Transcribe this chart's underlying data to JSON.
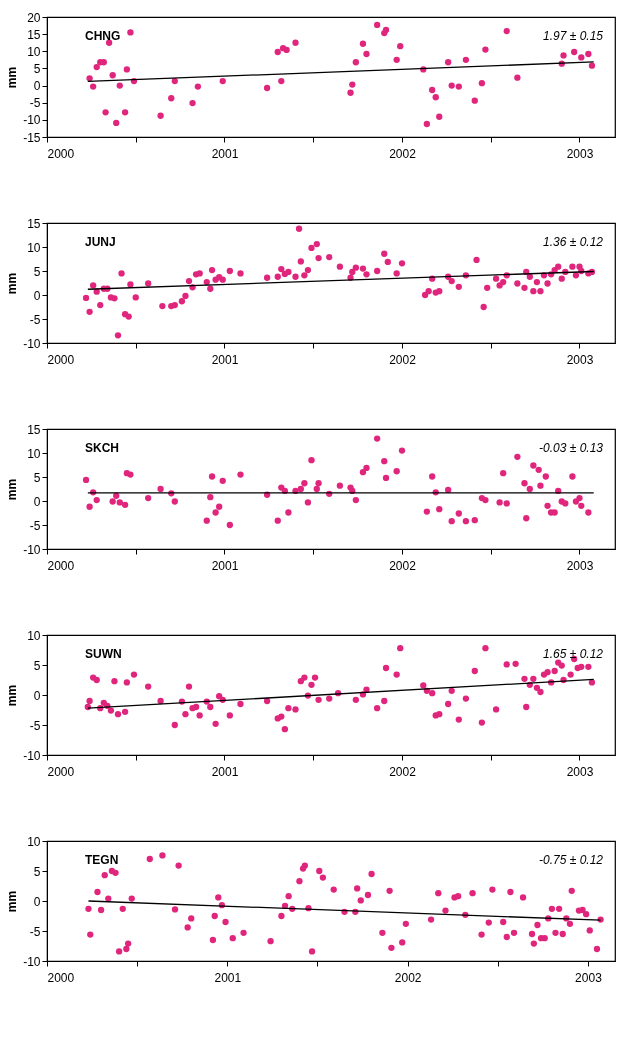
{
  "chart_data": [
    {
      "type": "scatter",
      "title": "CHNG",
      "ylabel": "mm",
      "annotations": [
        "1.97 ± 0.15"
      ],
      "grid": false,
      "xlim": [
        2000,
        2003.2
      ],
      "ylim": [
        -15,
        20
      ],
      "xticks": [
        2000,
        {
          "value": 2000.5,
          "label": null
        },
        2001,
        {
          "value": 2001.5,
          "label": null
        },
        2002,
        {
          "value": 2002.5,
          "label": null
        },
        2003
      ],
      "yticks": [
        -15,
        -10,
        -5,
        0,
        5,
        10,
        15,
        20
      ],
      "series": [
        {
          "marker": "circle",
          "color": "#e0267c",
          "x": [
            2000.24,
            2000.26,
            2000.28,
            2000.3,
            2000.32,
            2000.33,
            2000.35,
            2000.37,
            2000.39,
            2000.41,
            2000.44,
            2000.45,
            2000.47,
            2000.49,
            2000.64,
            2000.7,
            2000.72,
            2000.82,
            2000.85,
            2000.99,
            2001.24,
            2001.3,
            2001.32,
            2001.33,
            2001.35,
            2001.4,
            2001.71,
            2001.72,
            2001.74,
            2001.78,
            2001.8,
            2001.86,
            2001.9,
            2001.91,
            2001.97,
            2001.99,
            2002.12,
            2002.14,
            2002.17,
            2002.19,
            2002.21,
            2002.26,
            2002.28,
            2002.32,
            2002.36,
            2002.41,
            2002.45,
            2002.47,
            2002.59,
            2002.65,
            2002.9,
            2002.91,
            2002.97,
            2003.01,
            2003.05,
            2003.07
          ],
          "values": [
            2.1,
            -0.3,
            5.4,
            6.8,
            6.8,
            -7.8,
            12.5,
            3.0,
            -10.9,
            0,
            -7.8,
            4.7,
            15.5,
            1.3,
            -8.8,
            -3.7,
            1.3,
            -5.1,
            -0.3,
            1.3,
            -0.7,
            9.8,
            1.3,
            10.9,
            10.4,
            12.5,
            -2.1,
            0.3,
            6.8,
            12.2,
            9.2,
            17.7,
            15.3,
            16.2,
            7.5,
            11.5,
            4.7,
            -11.2,
            -1.3,
            -3.4,
            -9.1,
            6.8,
            0,
            -0.3,
            7.5,
            -4.4,
            0.7,
            10.5,
            15.9,
            2.3,
            6.4,
            8.8,
            9.8,
            8.2,
            9.2,
            5.8
          ]
        },
        {
          "type": "line",
          "color": "#000000",
          "x": [
            2000.23,
            2003.08
          ],
          "values": [
            1.2,
            6.9
          ]
        }
      ]
    },
    {
      "type": "scatter",
      "title": "JUNJ",
      "ylabel": "mm",
      "annotations": [
        "1.36 ± 0.12"
      ],
      "grid": false,
      "xlim": [
        2000,
        2003.2
      ],
      "ylim": [
        -10,
        15
      ],
      "xticks": [
        2000,
        {
          "value": 2000.5,
          "label": null
        },
        2001,
        {
          "value": 2001.5,
          "label": null
        },
        2002,
        {
          "value": 2002.5,
          "label": null
        },
        2003
      ],
      "yticks": [
        -10,
        -5,
        0,
        5,
        10,
        15
      ],
      "series": [
        {
          "marker": "circle",
          "color": "#e0267c",
          "x": [
            2000.22,
            2000.24,
            2000.26,
            2000.28,
            2000.3,
            2000.32,
            2000.34,
            2000.36,
            2000.38,
            2000.4,
            2000.42,
            2000.44,
            2000.46,
            2000.47,
            2000.5,
            2000.57,
            2000.65,
            2000.7,
            2000.72,
            2000.76,
            2000.78,
            2000.8,
            2000.82,
            2000.84,
            2000.86,
            2000.9,
            2000.92,
            2000.93,
            2000.95,
            2000.97,
            2000.99,
            2001.03,
            2001.09,
            2001.24,
            2001.3,
            2001.32,
            2001.34,
            2001.36,
            2001.4,
            2001.42,
            2001.43,
            2001.45,
            2001.47,
            2001.49,
            2001.52,
            2001.53,
            2001.59,
            2001.65,
            2001.71,
            2001.72,
            2001.74,
            2001.78,
            2001.8,
            2001.86,
            2001.9,
            2001.92,
            2001.97,
            2002.0,
            2002.13,
            2002.15,
            2002.17,
            2002.19,
            2002.21,
            2002.26,
            2002.28,
            2002.32,
            2002.36,
            2002.42,
            2002.46,
            2002.48,
            2002.53,
            2002.55,
            2002.57,
            2002.59,
            2002.65,
            2002.69,
            2002.7,
            2002.72,
            2002.74,
            2002.76,
            2002.78,
            2002.8,
            2002.82,
            2002.84,
            2002.86,
            2002.88,
            2002.9,
            2002.92,
            2002.96,
            2002.98,
            2003.0,
            2003.01,
            2003.05,
            2003.07
          ],
          "values": [
            -0.6,
            -3.5,
            2.0,
            0.7,
            -2.1,
            1.3,
            1.3,
            -0.5,
            -0.7,
            -8.4,
            4.5,
            -4.0,
            -4.5,
            2.2,
            -0.5,
            2.4,
            -2.3,
            -2.3,
            -2.1,
            -1.3,
            -0.2,
            2.9,
            1.6,
            4.3,
            4.5,
            2.7,
            1.3,
            5.2,
            3.2,
            3.7,
            3.2,
            5.0,
            4.5,
            3.6,
            3.8,
            5.4,
            4.4,
            4.8,
            3.8,
            13.8,
            7.0,
            4.1,
            5.2,
            9.8,
            10.6,
            7.7,
            7.9,
            5.9,
            3.6,
            4.8,
            5.7,
            5.5,
            4.3,
            5.0,
            8.6,
            6.9,
            4.5,
            6.6,
            0.0,
            0.8,
            3.4,
            0.5,
            0.8,
            3.8,
            2.9,
            1.7,
            4.1,
            7.3,
            -2.5,
            1.5,
            3.4,
            2.0,
            2.7,
            4.1,
            2.4,
            1.5,
            4.8,
            3.8,
            0.8,
            2.7,
            0.8,
            4.1,
            2.4,
            4.3,
            5.2,
            5.9,
            3.4,
            4.8,
            5.9,
            4.1,
            5.9,
            5.0,
            4.5,
            4.8
          ]
        },
        {
          "type": "line",
          "color": "#000000",
          "x": [
            2000.23,
            2003.08
          ],
          "values": [
            1.2,
            4.9
          ]
        }
      ]
    },
    {
      "type": "scatter",
      "title": "SKCH",
      "ylabel": "mm",
      "annotations": [
        "-0.03 ± 0.13"
      ],
      "grid": false,
      "xlim": [
        2000,
        2003.2
      ],
      "ylim": [
        -10,
        15
      ],
      "xticks": [
        2000,
        {
          "value": 2000.5,
          "label": null
        },
        2001,
        {
          "value": 2001.5,
          "label": null
        },
        2002,
        {
          "value": 2002.5,
          "label": null
        },
        2003
      ],
      "yticks": [
        -10,
        -5,
        0,
        5,
        10,
        15
      ],
      "series": [
        {
          "marker": "circle",
          "color": "#e0267c",
          "x": [
            2000.22,
            2000.24,
            2000.26,
            2000.28,
            2000.37,
            2000.39,
            2000.41,
            2000.44,
            2000.45,
            2000.47,
            2000.57,
            2000.64,
            2000.7,
            2000.72,
            2000.9,
            2000.92,
            2000.93,
            2000.95,
            2000.97,
            2000.99,
            2001.03,
            2001.09,
            2001.24,
            2001.3,
            2001.32,
            2001.34,
            2001.36,
            2001.4,
            2001.43,
            2001.45,
            2001.47,
            2001.49,
            2001.52,
            2001.53,
            2001.59,
            2001.65,
            2001.71,
            2001.72,
            2001.74,
            2001.78,
            2001.8,
            2001.86,
            2001.9,
            2001.91,
            2001.97,
            2002.0,
            2002.14,
            2002.17,
            2002.19,
            2002.21,
            2002.26,
            2002.28,
            2002.32,
            2002.36,
            2002.41,
            2002.45,
            2002.47,
            2002.55,
            2002.57,
            2002.59,
            2002.65,
            2002.69,
            2002.7,
            2002.72,
            2002.74,
            2002.77,
            2002.78,
            2002.81,
            2002.82,
            2002.84,
            2002.86,
            2002.88,
            2002.9,
            2002.92,
            2002.96,
            2002.98,
            2003.0,
            2003.01,
            2003.05
          ],
          "values": [
            4.4,
            -1.2,
            1.8,
            0.2,
            -0.1,
            1.1,
            -0.3,
            -0.8,
            5.8,
            5.5,
            0.6,
            2.5,
            1.6,
            -0.1,
            -4.1,
            0.8,
            5.1,
            -2.4,
            -1.2,
            4.2,
            -5.0,
            5.5,
            1.3,
            -4.1,
            2.8,
            2.1,
            -2.4,
            2.1,
            2.5,
            3.7,
            -0.3,
            8.5,
            2.5,
            3.7,
            1.5,
            3.2,
            2.8,
            2.1,
            0.2,
            6.0,
            6.9,
            13.0,
            8.3,
            4.8,
            6.2,
            10.5,
            -2.2,
            5.1,
            1.8,
            -1.7,
            2.3,
            -4.2,
            -2.6,
            -4.2,
            -4.0,
            0.6,
            0.2,
            -0.3,
            5.8,
            -0.5,
            9.2,
            3.7,
            -3.6,
            2.5,
            7.4,
            6.5,
            3.2,
            5.1,
            -1.0,
            -2.4,
            -2.4,
            2.1,
            -0.1,
            -0.5,
            5.1,
            -0.1,
            0.6,
            -1.0,
            -2.4
          ]
        },
        {
          "type": "line",
          "color": "#000000",
          "x": [
            2000.23,
            2003.08
          ],
          "values": [
            1.7,
            1.7
          ]
        }
      ]
    },
    {
      "type": "scatter",
      "title": "SUWN",
      "ylabel": "mm",
      "annotations": [
        "1.65 ± 0.12"
      ],
      "grid": false,
      "xlim": [
        2000,
        2003.2
      ],
      "ylim": [
        -10,
        10
      ],
      "xticks": [
        2000,
        {
          "value": 2000.5,
          "label": null
        },
        2001,
        {
          "value": 2001.5,
          "label": null
        },
        2002,
        {
          "value": 2002.5,
          "label": null
        },
        2003
      ],
      "yticks": [
        -10,
        -5,
        0,
        5,
        10
      ],
      "series": [
        {
          "marker": "circle",
          "color": "#e0267c",
          "x": [
            2000.23,
            2000.24,
            2000.26,
            2000.28,
            2000.3,
            2000.32,
            2000.34,
            2000.36,
            2000.38,
            2000.4,
            2000.44,
            2000.45,
            2000.49,
            2000.57,
            2000.64,
            2000.72,
            2000.76,
            2000.78,
            2000.8,
            2000.82,
            2000.84,
            2000.86,
            2000.9,
            2000.92,
            2000.95,
            2000.97,
            2000.99,
            2001.03,
            2001.09,
            2001.24,
            2001.3,
            2001.32,
            2001.34,
            2001.36,
            2001.4,
            2001.43,
            2001.45,
            2001.47,
            2001.49,
            2001.51,
            2001.53,
            2001.59,
            2001.64,
            2001.74,
            2001.78,
            2001.8,
            2001.86,
            2001.9,
            2001.91,
            2001.97,
            2001.99,
            2002.12,
            2002.14,
            2002.17,
            2002.19,
            2002.21,
            2002.26,
            2002.28,
            2002.32,
            2002.36,
            2002.41,
            2002.45,
            2002.47,
            2002.53,
            2002.59,
            2002.64,
            2002.69,
            2002.7,
            2002.72,
            2002.74,
            2002.76,
            2002.78,
            2002.8,
            2002.82,
            2002.84,
            2002.86,
            2002.88,
            2002.9,
            2002.91,
            2002.95,
            2002.97,
            2002.99,
            2003.01,
            2003.05,
            2003.07
          ],
          "values": [
            -2.0,
            -1.0,
            2.9,
            2.5,
            -2.2,
            -1.3,
            -1.8,
            -2.6,
            2.3,
            -3.2,
            -2.8,
            2.1,
            3.4,
            1.4,
            -1.0,
            -5.0,
            -1.1,
            -3.2,
            1.4,
            -2.2,
            -2.0,
            -3.4,
            -1.1,
            -2.0,
            -4.8,
            -0.2,
            -0.8,
            -3.4,
            -1.5,
            -1.0,
            -3.9,
            -3.6,
            -5.7,
            -2.2,
            -2.4,
            2.3,
            2.9,
            -0.1,
            1.7,
            2.9,
            -0.8,
            -0.6,
            0.3,
            -0.8,
            0.1,
            0.9,
            -2.2,
            -1.0,
            4.5,
            3.4,
            7.8,
            1.6,
            0.7,
            0.3,
            -3.4,
            -3.2,
            -1.5,
            0.7,
            -4.1,
            -0.6,
            4.0,
            -4.6,
            7.8,
            -2.4,
            5.1,
            5.2,
            2.7,
            -2.0,
            1.7,
            2.7,
            1.2,
            0.5,
            3.4,
            3.8,
            2.1,
            4.0,
            5.4,
            4.9,
            2.5,
            3.4,
            6.0,
            4.5,
            4.7,
            4.7,
            2.1
          ]
        },
        {
          "type": "line",
          "color": "#000000",
          "x": [
            2000.23,
            2003.08
          ],
          "values": [
            -2.2,
            2.6
          ]
        }
      ]
    },
    {
      "type": "scatter",
      "title": "TEGN",
      "ylabel": "mm",
      "annotations": [
        "-0.75 ± 0.12"
      ],
      "grid": false,
      "xlim": [
        2000,
        2003.15
      ],
      "ylim": [
        -10,
        10
      ],
      "xticks": [
        2000,
        {
          "value": 2000.5,
          "label": null
        },
        2001,
        {
          "value": 2001.5,
          "label": null
        },
        2002,
        {
          "value": 2002.5,
          "label": null
        },
        2003
      ],
      "yticks": [
        -10,
        -5,
        0,
        5,
        10
      ],
      "series": [
        {
          "marker": "circle",
          "color": "#e0267c",
          "x": [
            2000.23,
            2000.24,
            2000.28,
            2000.3,
            2000.32,
            2000.34,
            2000.36,
            2000.38,
            2000.4,
            2000.42,
            2000.44,
            2000.45,
            2000.47,
            2000.57,
            2000.64,
            2000.73,
            2000.71,
            2000.78,
            2000.8,
            2000.92,
            2000.93,
            2000.95,
            2000.97,
            2000.99,
            2001.03,
            2001.09,
            2001.24,
            2001.3,
            2001.32,
            2001.34,
            2001.36,
            2001.4,
            2001.42,
            2001.43,
            2001.45,
            2001.47,
            2001.51,
            2001.53,
            2001.59,
            2001.65,
            2001.71,
            2001.72,
            2001.74,
            2001.78,
            2001.8,
            2001.86,
            2001.9,
            2001.91,
            2001.97,
            2001.99,
            2002.13,
            2002.17,
            2002.21,
            2002.26,
            2002.28,
            2002.32,
            2002.36,
            2002.41,
            2002.45,
            2002.47,
            2002.53,
            2002.55,
            2002.57,
            2002.59,
            2002.64,
            2002.69,
            2002.7,
            2002.72,
            2002.74,
            2002.76,
            2002.78,
            2002.8,
            2002.82,
            2002.84,
            2002.86,
            2002.88,
            2002.9,
            2002.91,
            2002.95,
            2002.97,
            2002.99,
            2003.01,
            2003.05,
            2003.07
          ],
          "values": [
            -1.3,
            -5.6,
            1.5,
            -1.5,
            4.3,
            0.4,
            5.0,
            4.7,
            -8.4,
            -1.3,
            -8.0,
            -7.1,
            0.4,
            7.0,
            7.6,
            5.9,
            -1.4,
            -4.4,
            -2.9,
            -6.5,
            -2.5,
            0.6,
            -0.7,
            -3.5,
            -6.2,
            -5.3,
            -6.7,
            -2.5,
            -0.8,
            0.8,
            -1.3,
            3.3,
            5.4,
            5.9,
            -1.2,
            -8.4,
            5.0,
            3.9,
            1.9,
            -1.8,
            -1.8,
            2.1,
            0.1,
            1.0,
            4.5,
            -5.3,
            1.7,
            -7.8,
            -6.9,
            -3.8,
            -3.1,
            1.3,
            -1.6,
            0.6,
            0.8,
            -2.3,
            1.3,
            -5.6,
            -3.6,
            1.9,
            -3.5,
            -6.0,
            1.5,
            -5.3,
            0.6,
            -5.5,
            -7.1,
            -4.0,
            -6.2,
            -6.2,
            -2.9,
            -1.3,
            -5.3,
            -1.3,
            -5.5,
            -2.9,
            -3.8,
            1.7,
            -1.6,
            -1.5,
            -2.2,
            -4.9,
            -8.0,
            -3.1
          ]
        },
        {
          "type": "line",
          "color": "#000000",
          "x": [
            2000.23,
            2003.07
          ],
          "values": [
            0,
            -3.2
          ]
        }
      ]
    }
  ]
}
